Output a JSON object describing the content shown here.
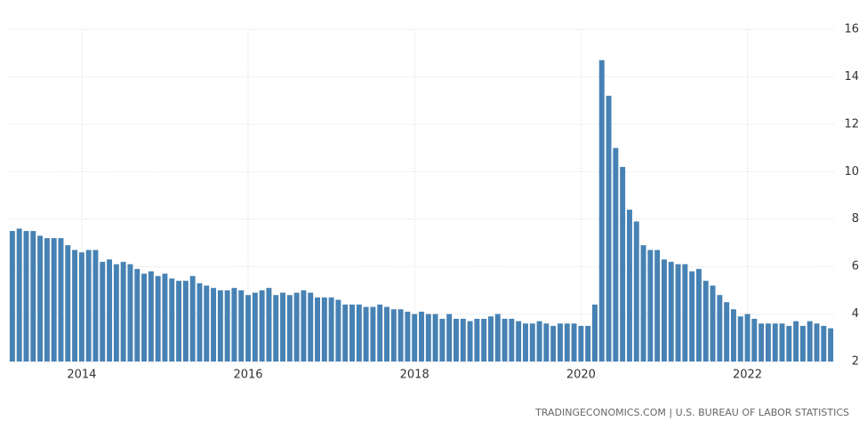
{
  "chart_data": {
    "type": "bar",
    "source": "TRADINGECONOMICS.COM  |  U.S. BUREAU OF LABOR STATISTICS",
    "categories": [
      null,
      null,
      null,
      null,
      null,
      null,
      null,
      null,
      null,
      null,
      "2014",
      null,
      null,
      null,
      null,
      null,
      null,
      null,
      null,
      null,
      null,
      null,
      null,
      null,
      null,
      null,
      null,
      null,
      null,
      null,
      null,
      null,
      null,
      null,
      "2016",
      null,
      null,
      null,
      null,
      null,
      null,
      null,
      null,
      null,
      null,
      null,
      null,
      null,
      null,
      null,
      null,
      null,
      null,
      null,
      null,
      null,
      null,
      null,
      "2018",
      null,
      null,
      null,
      null,
      null,
      null,
      null,
      null,
      null,
      null,
      null,
      null,
      null,
      null,
      null,
      null,
      null,
      null,
      null,
      null,
      null,
      null,
      null,
      "2020",
      null,
      null,
      null,
      null,
      null,
      null,
      null,
      null,
      null,
      null,
      null,
      null,
      null,
      null,
      null,
      null,
      null,
      null,
      null,
      null,
      null,
      null,
      null,
      "2022",
      null,
      null,
      null,
      null,
      null,
      null,
      null,
      null,
      null,
      null,
      null,
      null
    ],
    "values": [
      7.5,
      7.6,
      7.5,
      7.5,
      7.3,
      7.2,
      7.2,
      7.2,
      6.9,
      6.7,
      6.6,
      6.7,
      6.7,
      6.2,
      6.3,
      6.1,
      6.2,
      6.1,
      5.9,
      5.7,
      5.8,
      5.6,
      5.7,
      5.5,
      5.4,
      5.4,
      5.6,
      5.3,
      5.2,
      5.1,
      5.0,
      5.0,
      5.1,
      5.0,
      4.8,
      4.9,
      5.0,
      5.1,
      4.8,
      4.9,
      4.8,
      4.9,
      5.0,
      4.9,
      4.7,
      4.7,
      4.7,
      4.6,
      4.4,
      4.4,
      4.4,
      4.3,
      4.3,
      4.4,
      4.3,
      4.2,
      4.2,
      4.1,
      4.0,
      4.1,
      4.0,
      4.0,
      3.8,
      4.0,
      3.8,
      3.8,
      3.7,
      3.8,
      3.8,
      3.9,
      4.0,
      3.8,
      3.8,
      3.7,
      3.6,
      3.6,
      3.7,
      3.6,
      3.5,
      3.6,
      3.6,
      3.6,
      3.5,
      3.5,
      4.4,
      14.7,
      13.2,
      11.0,
      10.2,
      8.4,
      7.9,
      6.9,
      6.7,
      6.7,
      6.3,
      6.2,
      6.1,
      6.1,
      5.8,
      5.9,
      5.4,
      5.2,
      4.8,
      4.5,
      4.2,
      3.9,
      4.0,
      3.8,
      3.6,
      3.6,
      3.6,
      3.6,
      3.5,
      3.7,
      3.5,
      3.7,
      3.6,
      3.5,
      3.4
    ],
    "color": "#4682b4",
    "ylim": [
      2,
      16
    ],
    "yticks": [
      2,
      4,
      6,
      8,
      10,
      12,
      14,
      16
    ],
    "grid": true
  }
}
